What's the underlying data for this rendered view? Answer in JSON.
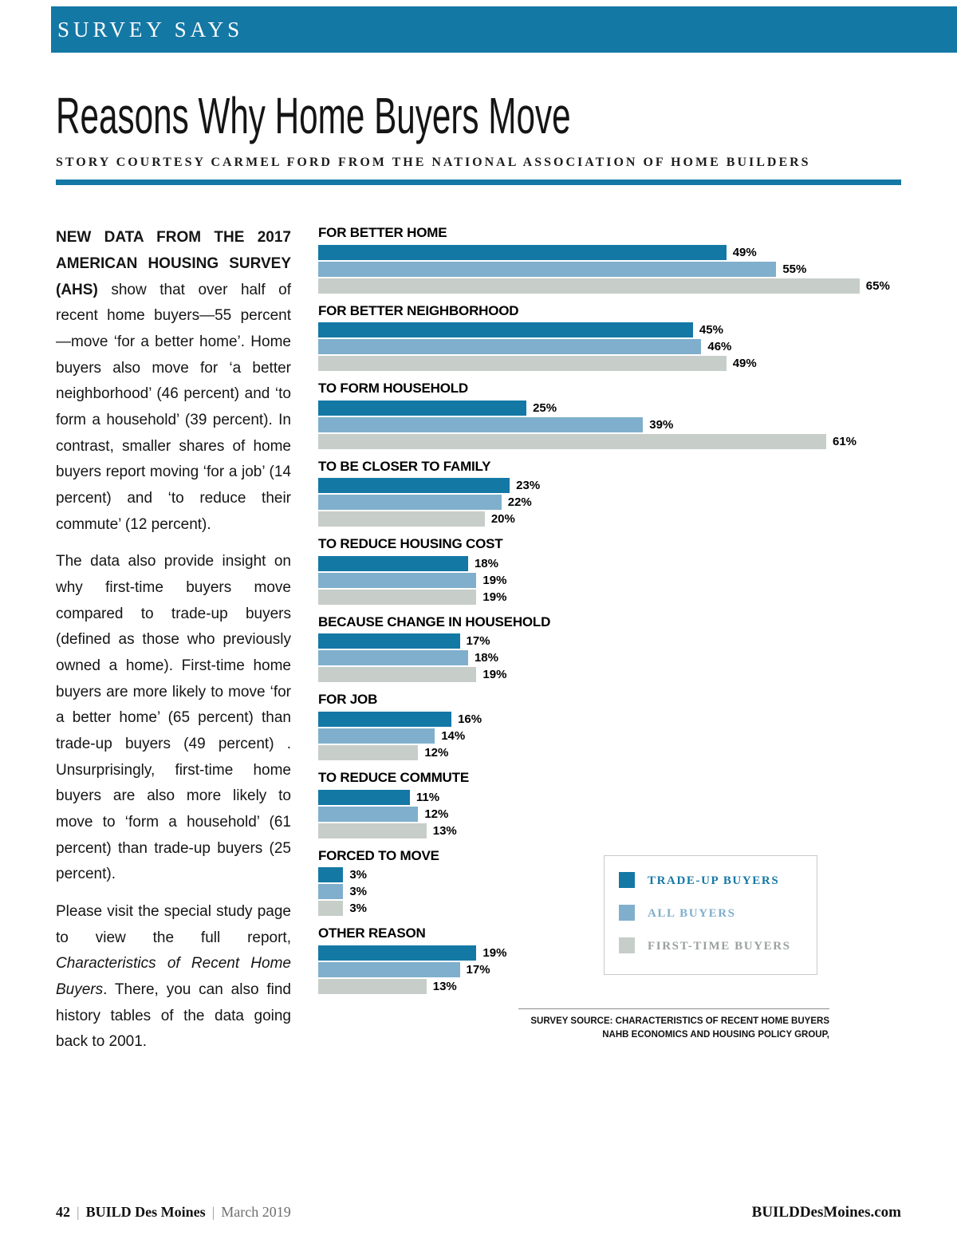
{
  "header": {
    "label": "SURVEY SAYS"
  },
  "page": {
    "title": "Reasons Why Home Buyers Move",
    "byline": "STORY COURTESY CARMEL FORD FROM THE NATIONAL ASSOCIATION OF HOME BUILDERS"
  },
  "article": {
    "p1_bold": "NEW DATA FROM THE 2017 AMERICAN HOUSING SURVEY (AHS)",
    "p1_rest": " show that over half of recent home buyers—55 percent—move ‘for a better home’. Home buyers also move for ‘a better neighborhood’ (46 percent) and ‘to form a household’ (39 percent). In contrast, smaller shares of home buyers report moving ‘for a job’ (14 percent) and ‘to reduce their commute’ (12 percent).",
    "p2": "The data also provide insight on why first-time buyers move compared to trade-up buyers (defined as those who previously owned a home). First-time home buyers are more likely to move ‘for a better home’ (65 percent) than trade-up buyers (49 percent) . Unsurprisingly, first-time home buyers are also more likely to move to ‘form a household’ (61 percent) than trade-up buyers (25 percent).",
    "p3_pre": "Please visit the special study page to view the full report, ",
    "p3_italic": "Characteristics of Recent Home Buyers",
    "p3_post": ". There, you can also find history tables of the data going back to 2001."
  },
  "chart_data": {
    "type": "bar",
    "orientation": "horizontal",
    "unit": "%",
    "axis_max": 70,
    "grid": false,
    "legend_position": "inset-bottom-right",
    "categories": [
      "FOR BETTER HOME",
      "FOR BETTER NEIGHBORHOOD",
      "TO FORM HOUSEHOLD",
      "TO BE CLOSER TO FAMILY",
      "TO REDUCE HOUSING COST",
      "BECAUSE CHANGE IN HOUSEHOLD",
      "FOR JOB",
      "TO REDUCE COMMUTE",
      "FORCED TO MOVE",
      "OTHER REASON"
    ],
    "series": [
      {
        "name": "TRADE-UP BUYERS",
        "key": "trade-up",
        "color": "#1478a5",
        "values": [
          49,
          45,
          25,
          23,
          18,
          17,
          16,
          11,
          3,
          19
        ]
      },
      {
        "name": "ALL BUYERS",
        "key": "all-buyers",
        "color": "#7fafcc",
        "values": [
          55,
          46,
          39,
          22,
          19,
          18,
          14,
          12,
          3,
          17
        ]
      },
      {
        "name": "FIRST-TIME BUYERS",
        "key": "first-time-buyers",
        "color": "#c7cec9",
        "values": [
          65,
          49,
          61,
          20,
          19,
          19,
          12,
          13,
          3,
          13
        ]
      }
    ]
  },
  "legend": {
    "items": [
      {
        "label": "TRADE-UP BUYERS",
        "swatch_color": "#1478a5",
        "text_color": "#1478a5"
      },
      {
        "label": "ALL BUYERS",
        "swatch_color": "#7fafcc",
        "text_color": "#7fafcc"
      },
      {
        "label": "FIRST-TIME BUYERS",
        "swatch_color": "#c7cec9",
        "text_color": "#9aa29d"
      }
    ]
  },
  "source": {
    "line1": "SURVEY SOURCE: CHARACTERISTICS OF RECENT HOME BUYERS",
    "line2": "NAHB ECONOMICS AND HOUSING POLICY GROUP,"
  },
  "footer": {
    "page_number": "42",
    "separator": "|",
    "magazine": "BUILD Des Moines",
    "issue": "March 2019",
    "website": "BUILDDesMoines.com"
  }
}
